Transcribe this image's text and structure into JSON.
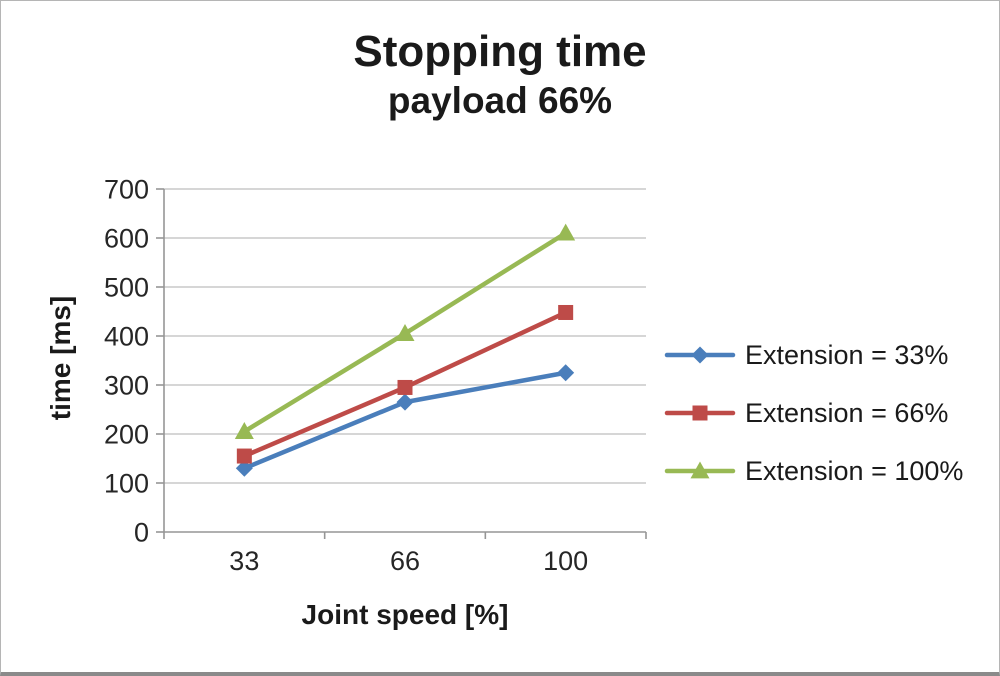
{
  "chart_data": {
    "type": "line",
    "title": "Stopping time",
    "subtitle": "payload 66%",
    "xlabel": "Joint speed [%]",
    "ylabel": "time [ms]",
    "categories": [
      "33",
      "66",
      "100"
    ],
    "series": [
      {
        "name": "Extension = 33%",
        "values": [
          130,
          265,
          325
        ],
        "color": "#4a7ebb",
        "marker": "diamond"
      },
      {
        "name": "Extension = 66%",
        "values": [
          155,
          295,
          448
        ],
        "color": "#be4b48",
        "marker": "square"
      },
      {
        "name": "Extension = 100%",
        "values": [
          205,
          405,
          610
        ],
        "color": "#98b954",
        "marker": "triangle"
      }
    ],
    "ylim": [
      0,
      700
    ],
    "ytick_step": 100,
    "grid": true,
    "legend_position": "right",
    "colors": {
      "gridline": "#c9c9c9",
      "axis": "#969696",
      "text": "#262626"
    }
  }
}
